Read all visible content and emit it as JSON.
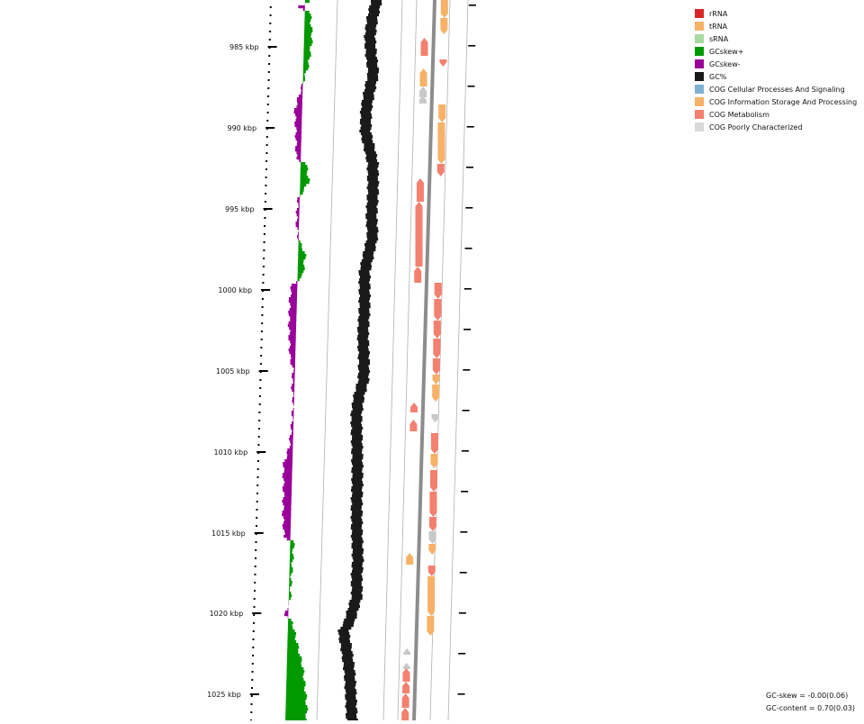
{
  "legend": [
    {
      "label": "rRNA",
      "color": "#d62728"
    },
    {
      "label": "tRNA",
      "color": "#f7b267"
    },
    {
      "label": "sRNA",
      "color": "#a6dba0"
    },
    {
      "label": "GCskew+",
      "color": "#009900"
    },
    {
      "label": "GCskew-",
      "color": "#990099"
    },
    {
      "label": "GC%",
      "color": "#1a1a1a"
    },
    {
      "label": "COG Cellular Processes And Signaling",
      "color": "#7fb1d3"
    },
    {
      "label": "COG Information Storage And Processing",
      "color": "#f7b267"
    },
    {
      "label": "COG Metabolism",
      "color": "#f4806f"
    },
    {
      "label": "COG Poorly Characterized",
      "color": "#d9d9d9"
    }
  ],
  "axis": {
    "ticks": [
      "985 kbp",
      "990 kbp",
      "995 kbp",
      "1000 kbp",
      "1005 kbp",
      "1010 kbp",
      "1015 kbp",
      "1020 kbp",
      "1025 kbp"
    ]
  },
  "stats": {
    "gc_skew": "GC-skew = -0.00(0.06)",
    "gc_content": "GC-content = 0.70(0.03)"
  },
  "colors": {
    "backbone": "#8c8c8c",
    "guide": "#b0b0b0",
    "gc_content": "#1a1a1a",
    "skew_pos": "#009900",
    "skew_neg": "#990099",
    "poorly": "#c8c8c8"
  }
}
